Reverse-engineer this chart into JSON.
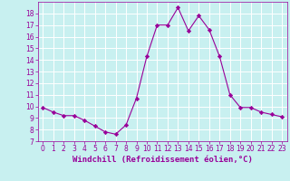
{
  "x": [
    0,
    1,
    2,
    3,
    4,
    5,
    6,
    7,
    8,
    9,
    10,
    11,
    12,
    13,
    14,
    15,
    16,
    17,
    18,
    19,
    20,
    21,
    22,
    23
  ],
  "y": [
    9.9,
    9.5,
    9.2,
    9.2,
    8.8,
    8.3,
    7.8,
    7.6,
    8.4,
    10.7,
    14.3,
    17.0,
    17.0,
    18.5,
    16.5,
    17.8,
    16.6,
    14.3,
    11.0,
    9.9,
    9.9,
    9.5,
    9.3,
    9.1
  ],
  "line_color": "#990099",
  "marker": "D",
  "marker_size": 2.2,
  "background_color": "#c8f0f0",
  "grid_color": "#ffffff",
  "xlabel": "Windchill (Refroidissement éolien,°C)",
  "xlabel_color": "#990099",
  "xlim": [
    -0.5,
    23.5
  ],
  "ylim": [
    7,
    19
  ],
  "yticks": [
    7,
    8,
    9,
    10,
    11,
    12,
    13,
    14,
    15,
    16,
    17,
    18
  ],
  "xticks": [
    0,
    1,
    2,
    3,
    4,
    5,
    6,
    7,
    8,
    9,
    10,
    11,
    12,
    13,
    14,
    15,
    16,
    17,
    18,
    19,
    20,
    21,
    22,
    23
  ],
  "tick_label_fontsize": 5.5,
  "xlabel_fontsize": 6.5
}
